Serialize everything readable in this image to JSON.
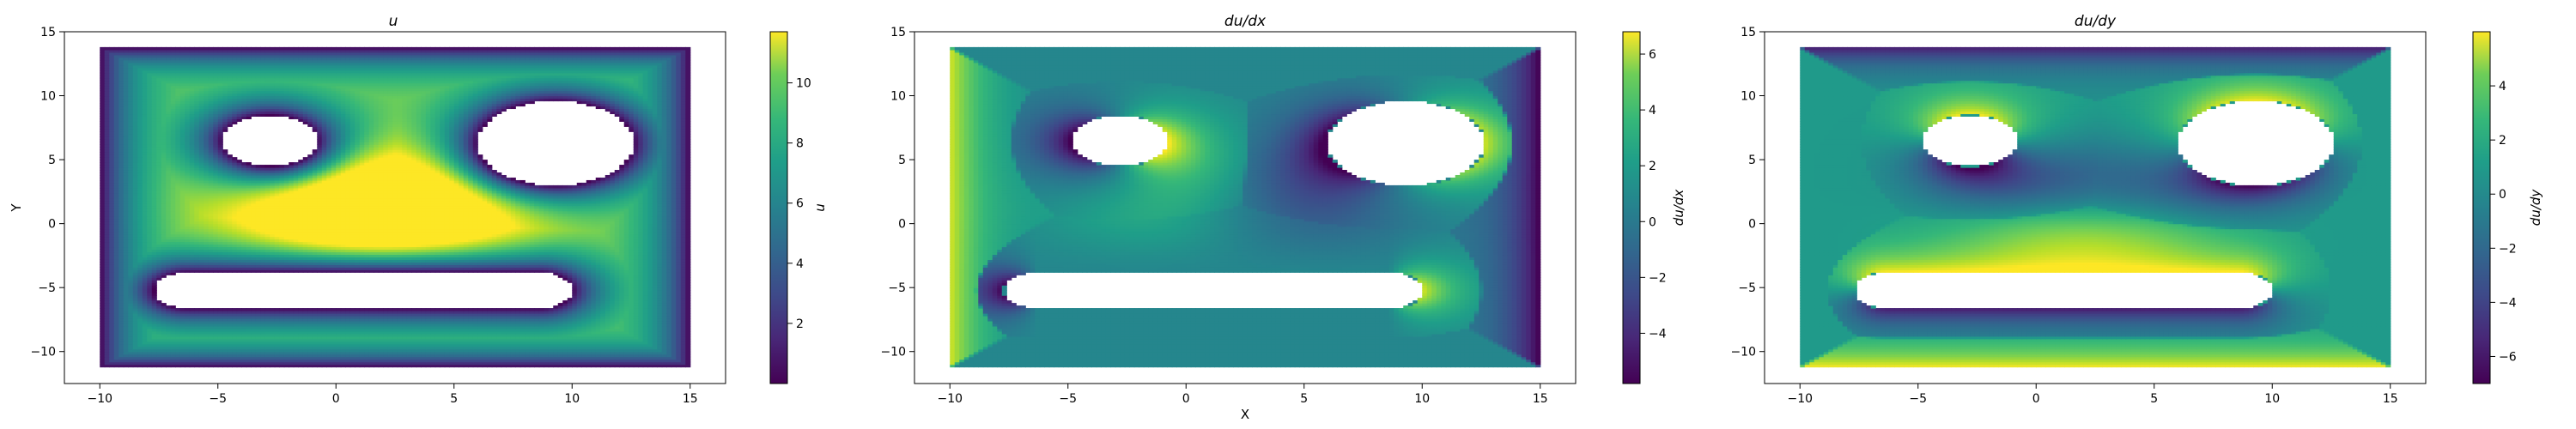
{
  "figure": {
    "xlabel": "X",
    "ylabel": "Y"
  },
  "chart_data": [
    {
      "type": "heatmap",
      "title": "u",
      "xlabel": "",
      "ylabel": "Y",
      "colorbar_label": "u",
      "colormap": "viridis",
      "xlim": [
        -11.5,
        16.5
      ],
      "ylim": [
        -12.5,
        15
      ],
      "domain": {
        "x": [
          -10,
          15
        ],
        "y": [
          -11.2,
          13.8
        ]
      },
      "xticks": [
        -10,
        -5,
        0,
        5,
        10,
        15
      ],
      "yticks": [
        -10,
        -5,
        0,
        5,
        10,
        15
      ],
      "clim": [
        0,
        11.7
      ],
      "cbar_ticks": [
        2,
        4,
        6,
        8,
        10
      ],
      "field_description": "High near (2,1) about 11.5, falling to 0 at walls and holes",
      "peak": {
        "x": 2,
        "y": 1.2,
        "value": 11.5
      }
    },
    {
      "type": "heatmap",
      "title": "du/dx",
      "xlabel": "X",
      "ylabel": "",
      "colorbar_label": "du/dx",
      "colormap": "viridis",
      "xlim": [
        -11.5,
        16.5
      ],
      "ylim": [
        -12.5,
        15
      ],
      "domain": {
        "x": [
          -10,
          15
        ],
        "y": [
          -11.2,
          13.8
        ]
      },
      "xticks": [
        -10,
        -5,
        0,
        5,
        10,
        15
      ],
      "yticks": [
        -10,
        -5,
        0,
        5,
        10,
        15
      ],
      "clim": [
        -5.8,
        6.8
      ],
      "cbar_ticks": [
        -4,
        -2,
        0,
        2,
        4,
        6
      ]
    },
    {
      "type": "heatmap",
      "title": "du/dy",
      "xlabel": "",
      "ylabel": "",
      "colorbar_label": "du/dy",
      "colormap": "viridis",
      "xlim": [
        -11.5,
        16.5
      ],
      "ylim": [
        -12.5,
        15
      ],
      "domain": {
        "x": [
          -10,
          15
        ],
        "y": [
          -11.2,
          13.8
        ]
      },
      "xticks": [
        -10,
        -5,
        0,
        5,
        10,
        15
      ],
      "yticks": [
        -10,
        -5,
        0,
        5,
        10,
        15
      ],
      "clim": [
        -7,
        6
      ],
      "cbar_ticks": [
        -6,
        -4,
        -2,
        0,
        2,
        4
      ]
    }
  ],
  "obstacles": [
    {
      "shape": "ellipse",
      "cx": -2.8,
      "cy": 6.5,
      "rx": 2.0,
      "ry": 2.0
    },
    {
      "shape": "ellipse",
      "cx": 9.3,
      "cy": 6.3,
      "rx": 3.3,
      "ry": 3.3
    },
    {
      "shape": "stadium",
      "x0": -6.3,
      "x1": 8.6,
      "cy": -5.2,
      "r": 1.4
    }
  ]
}
